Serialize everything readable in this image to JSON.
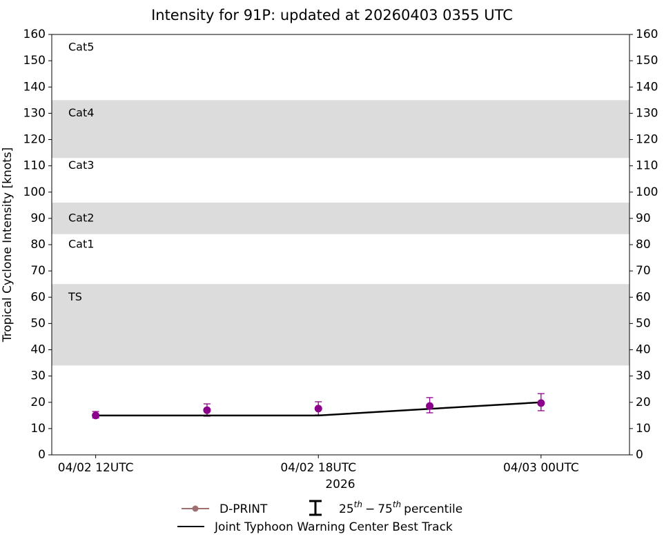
{
  "chart_data": {
    "type": "line",
    "title": "Intensity for 91P: updated at 20260403 0355 UTC",
    "ylabel": "Tropical Cyclone Intensity [knots]",
    "xlabel": "2026",
    "xlim": [
      "2026-04-02T10:49",
      "2026-04-03T02:23"
    ],
    "xticks": [
      {
        "value": "2026-04-02T12:00",
        "label": "04/02 12UTC"
      },
      {
        "value": "2026-04-02T18:00",
        "label": "04/02 18UTC"
      },
      {
        "value": "2026-04-03T00:00",
        "label": "04/03 00UTC"
      }
    ],
    "ylim": [
      0,
      160
    ],
    "yticks": [
      0,
      10,
      20,
      30,
      40,
      50,
      60,
      70,
      80,
      90,
      100,
      110,
      120,
      130,
      140,
      150,
      160
    ],
    "y2lim": [
      0,
      160
    ],
    "y2ticks": [
      0,
      10,
      20,
      30,
      40,
      50,
      60,
      70,
      80,
      90,
      100,
      110,
      120,
      130,
      140,
      150,
      160
    ],
    "band_color": "#dcdcdc",
    "bands": [
      [
        34,
        65
      ],
      [
        84,
        96
      ],
      [
        113,
        135
      ]
    ],
    "band_labels": [
      {
        "label": "Cat5",
        "value": 155
      },
      {
        "label": "Cat4",
        "value": 130
      },
      {
        "label": "Cat3",
        "value": 110
      },
      {
        "label": "Cat2",
        "value": 90
      },
      {
        "label": "Cat1",
        "value": 80
      },
      {
        "label": "TS",
        "value": 60
      }
    ],
    "x": [
      "2026-04-02T12:00",
      "2026-04-02T15:00",
      "2026-04-02T18:00",
      "2026-04-02T21:00",
      "2026-04-03T00:00"
    ],
    "series": [
      {
        "name": "D-PRINT",
        "color": "#8b008b",
        "legend_color": "#9e6f6f",
        "style": "markers",
        "values": [
          15,
          17,
          17.6,
          18.6,
          19.7
        ],
        "low": [
          14,
          14.7,
          15.2,
          16,
          16.8
        ],
        "high": [
          16.5,
          19.4,
          20.2,
          21.8,
          23.3
        ]
      },
      {
        "name": "Joint Typhoon Warning Center Best Track",
        "color": "#000000",
        "style": "line",
        "values": [
          15,
          15,
          15,
          17.5,
          20
        ]
      }
    ],
    "percentile_legend": {
      "low": "25",
      "low_sup": "th",
      "dash": "−",
      "high": "75",
      "high_sup": "th",
      "text": "percentile"
    }
  }
}
